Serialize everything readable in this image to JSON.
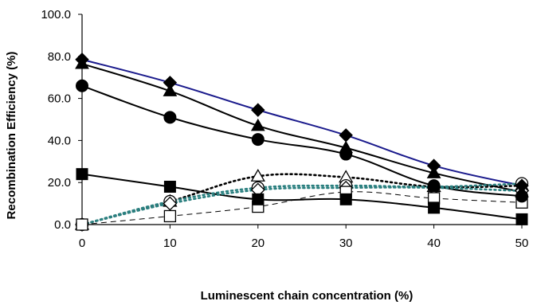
{
  "chart_data": {
    "type": "line",
    "title": "",
    "xlabel": "Luminescent chain concentration (%)",
    "ylabel": "Recombination Efficiency (%)",
    "xlim": [
      0,
      50
    ],
    "ylim": [
      0,
      100
    ],
    "x_ticks": [
      "0",
      "10",
      "20",
      "30",
      "40",
      "50"
    ],
    "y_ticks": [
      "0.0",
      "20.0",
      "40.0",
      "60.0",
      "80.0",
      "100.0"
    ],
    "grid": false,
    "legend": "none",
    "x": [
      0,
      10,
      20,
      30,
      40,
      50
    ],
    "series": [
      {
        "marker": "diamond-filled",
        "line": "solid",
        "color": "#1a1a8c",
        "values": [
          78.5,
          67.5,
          54.5,
          42.5,
          28.0,
          18.5
        ]
      },
      {
        "marker": "triangle-filled",
        "line": "solid",
        "color": "#000000",
        "values": [
          76.5,
          63.5,
          47.0,
          36.5,
          24.5,
          15.5
        ]
      },
      {
        "marker": "circle-filled",
        "line": "solid",
        "color": "#000000",
        "values": [
          66.0,
          51.0,
          40.5,
          33.5,
          18.5,
          13.5
        ]
      },
      {
        "marker": "square-filled",
        "line": "solid",
        "color": "#000000",
        "values": [
          24.0,
          18.0,
          12.0,
          12.0,
          8.0,
          2.5
        ]
      },
      {
        "marker": "triangle-open",
        "line": "dotted",
        "color": "#000000",
        "values": [
          0.0,
          11.0,
          23.0,
          22.5,
          18.0,
          18.5
        ]
      },
      {
        "marker": "circle-open",
        "line": "dotted",
        "color": "#2a7f7f",
        "values": [
          0.0,
          11.0,
          17.5,
          18.5,
          18.0,
          19.5
        ]
      },
      {
        "marker": "diamond-open",
        "line": "dotted",
        "color": "#2a7f7f",
        "values": [
          0.0,
          10.0,
          16.5,
          17.5,
          17.5,
          16.0
        ]
      },
      {
        "marker": "square-open",
        "line": "dashed",
        "color": "#000000",
        "values": [
          0.0,
          4.0,
          8.5,
          15.5,
          12.5,
          10.5
        ]
      }
    ]
  }
}
